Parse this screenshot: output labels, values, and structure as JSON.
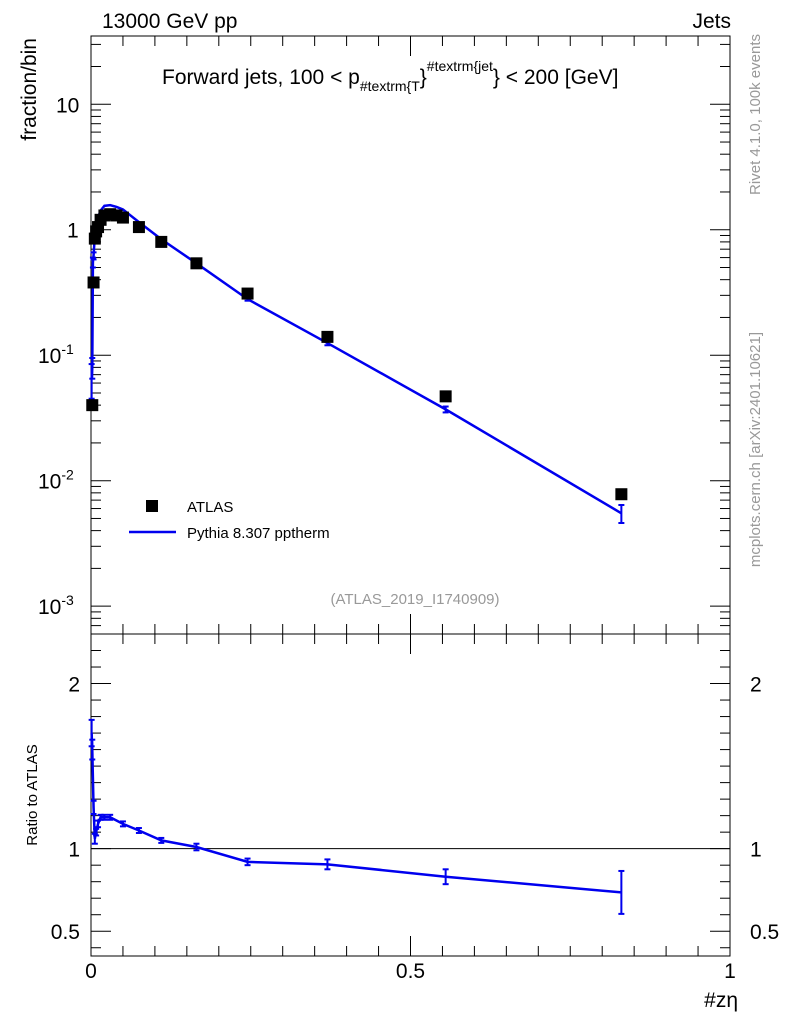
{
  "header": {
    "left": "13000 GeV pp",
    "right": "Jets"
  },
  "side_labels": {
    "rivet": "Rivet 4.1.0,  100k events",
    "mcplots": "mcplots.cern.ch [arXiv:2401.10621]"
  },
  "watermark": "(ATLAS_2019_I1740909)",
  "colors": {
    "data": "#000000",
    "mc": "#0000ee",
    "axis": "#000000",
    "grey": "#999999"
  },
  "chart_data": [
    {
      "type": "scatter",
      "title_main": "Forward jets, 100 < p",
      "title_sub": "#textrm{T",
      "title_brace": "}",
      "title_sup": "#textrm{jet",
      "title_tail": "} < 200 [GeV]",
      "ylabel": "fraction/bin",
      "yscale": "log",
      "ylim": [
        0.0006,
        35
      ],
      "xlim": [
        0,
        1
      ],
      "yticks": [
        {
          "base": "10",
          "exp": "-3",
          "value": 0.001
        },
        {
          "base": "10",
          "exp": "-2",
          "value": 0.01
        },
        {
          "base": "10",
          "exp": "-1",
          "value": 0.1
        },
        {
          "base": "1",
          "exp": "",
          "value": 1
        },
        {
          "base": "10",
          "exp": "",
          "value": 10
        }
      ],
      "legend": {
        "position": "bottom-left",
        "data_label": "ATLAS",
        "mc_label": "Pythia 8.307 pptherm"
      },
      "data_series": {
        "name": "ATLAS",
        "x": [
          0.002,
          0.004,
          0.006,
          0.008,
          0.011,
          0.015,
          0.021,
          0.03,
          0.04,
          0.05,
          0.075,
          0.11,
          0.165,
          0.245,
          0.37,
          0.555,
          0.83
        ],
        "y": [
          0.04,
          0.38,
          0.85,
          0.97,
          1.05,
          1.2,
          1.3,
          1.33,
          1.3,
          1.25,
          1.05,
          0.8,
          0.54,
          0.31,
          0.14,
          0.047,
          0.0078
        ]
      },
      "mc_series": {
        "name": "Pythia 8.307 pptherm",
        "x": [
          0.001,
          0.002,
          0.003,
          0.004,
          0.006,
          0.008,
          0.011,
          0.015,
          0.021,
          0.03,
          0.04,
          0.05,
          0.075,
          0.11,
          0.165,
          0.245,
          0.37,
          0.555,
          0.83
        ],
        "y": [
          0.065,
          0.08,
          0.55,
          0.62,
          0.9,
          1.05,
          1.25,
          1.42,
          1.55,
          1.57,
          1.52,
          1.45,
          1.15,
          0.84,
          0.54,
          0.28,
          0.125,
          0.037,
          0.0055
        ],
        "yerr": [
          0.02,
          0.015,
          0.05,
          0.04,
          0.03,
          0.03,
          0.03,
          0.03,
          0.03,
          0.03,
          0.03,
          0.03,
          0.02,
          0.015,
          0.01,
          0.008,
          0.005,
          0.002,
          0.0009
        ]
      }
    },
    {
      "type": "line",
      "ylabel": "Ratio to ATLAS",
      "xlabel": "#zη",
      "xlim": [
        0,
        1
      ],
      "ylim": [
        0.35,
        2.3
      ],
      "yticks": [
        {
          "label": "0.5",
          "value": 0.5
        },
        {
          "label": "1",
          "value": 1
        },
        {
          "label": "2",
          "value": 2
        }
      ],
      "xticks": [
        {
          "label": "0",
          "value": 0
        },
        {
          "label": "0.5",
          "value": 0.5
        },
        {
          "label": "1",
          "value": 1
        }
      ],
      "reference_line": 1,
      "series": [
        {
          "name": "Pythia 8.307 pptherm / ATLAS",
          "x": [
            0.001,
            0.002,
            0.004,
            0.006,
            0.008,
            0.011,
            0.015,
            0.021,
            0.03,
            0.05,
            0.075,
            0.11,
            0.165,
            0.245,
            0.37,
            0.555,
            0.83
          ],
          "y": [
            1.7,
            1.6,
            1.25,
            1.06,
            1.1,
            1.15,
            1.19,
            1.19,
            1.19,
            1.15,
            1.11,
            1.05,
            1.01,
            0.92,
            0.905,
            0.83,
            0.735
          ],
          "yerr": [
            0.08,
            0.06,
            0.04,
            0.03,
            0.02,
            0.02,
            0.015,
            0.015,
            0.015,
            0.015,
            0.015,
            0.015,
            0.02,
            0.02,
            0.03,
            0.045,
            0.13
          ]
        }
      ]
    }
  ]
}
